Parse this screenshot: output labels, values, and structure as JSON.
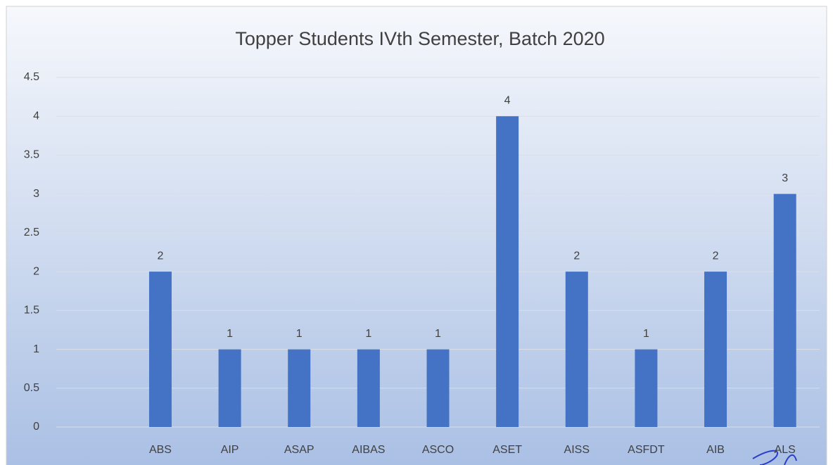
{
  "chart_data": {
    "type": "bar",
    "title": "Topper Students IVth Semester, Batch 2020",
    "categories": [
      null,
      "ABS",
      "AIP",
      "ASAP",
      "AIBAS",
      "ASCO",
      "ASET",
      "AISS",
      "ASFDT",
      "AIB",
      "ALS"
    ],
    "values": [
      null,
      2,
      1,
      1,
      1,
      1,
      4,
      2,
      1,
      2,
      3
    ],
    "color": "#4472c4",
    "ylim": [
      0,
      4.5
    ],
    "yticks": [
      0,
      0.5,
      1,
      1.5,
      2,
      2.5,
      3,
      3.5,
      4,
      4.5
    ],
    "grid": true
  }
}
